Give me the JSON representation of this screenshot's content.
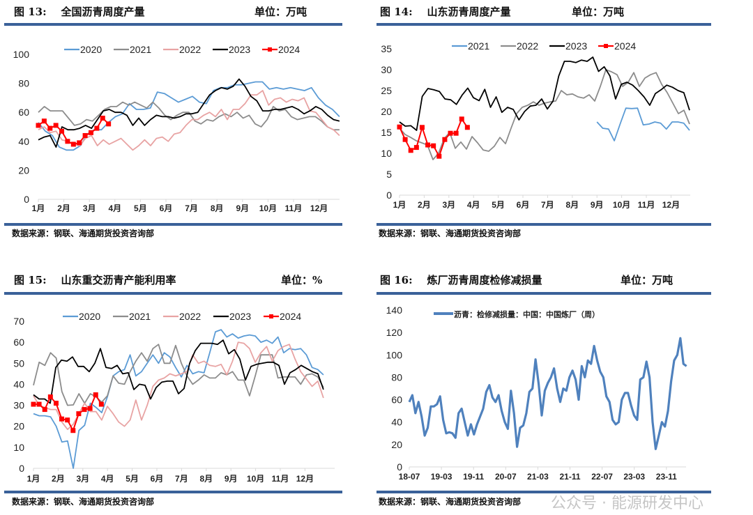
{
  "panels": [
    {
      "fig": "图 13:",
      "title": "全国沥青周度产量",
      "unit": "单位：万吨",
      "source": "数据来源：钢联、海通期货投资咨询部"
    },
    {
      "fig": "图 14:",
      "title": "山东沥青周度产量",
      "unit": "单位：万吨",
      "source": "数据来源：钢联、海通期货投资咨询部"
    },
    {
      "fig": "图 15:",
      "title": "山东重交沥青产能利用率",
      "unit": "单位：%",
      "source": "数据来源：钢联、海通期货投资咨询部"
    },
    {
      "fig": "图 16:",
      "title": "炼厂沥青周度检修减损量",
      "unit": "单位：万吨",
      "source": "数据来源：钢联、海通期货投资咨询部"
    }
  ],
  "watermark": "公众号 · 能源研发中心",
  "chart_data": [
    {
      "type": "line",
      "title": "全国沥青周度产量",
      "ylabel": "万吨",
      "ylim": [
        0,
        100
      ],
      "yticks": [
        0,
        20,
        40,
        60,
        80,
        100
      ],
      "x_unit": "month index (0 = 1月)",
      "xticks": [
        "1月",
        "2月",
        "3月",
        "4月",
        "5月",
        "6月",
        "7月",
        "8月",
        "9月",
        "10月",
        "11月",
        "12月"
      ],
      "legend": "top",
      "series": [
        {
          "name": "2020",
          "color": "#5b9bd5",
          "x_range": [
            0,
            11.8
          ],
          "values": [
            53,
            47,
            44,
            36,
            34,
            34,
            37,
            45,
            48,
            48,
            53,
            57,
            59,
            66,
            62,
            62,
            63,
            74,
            73,
            70,
            67,
            69,
            71,
            67,
            66,
            75,
            77,
            77,
            79,
            79,
            80,
            81,
            81,
            76,
            77,
            76,
            77,
            76,
            75,
            77,
            70,
            65,
            62,
            57
          ]
        },
        {
          "name": "2021",
          "color": "#8c8c8c",
          "x_range": [
            0,
            11.8
          ],
          "values": [
            60,
            64,
            61,
            61,
            61,
            56,
            51,
            52,
            55,
            54,
            58,
            62,
            64,
            64,
            67,
            65,
            67,
            65,
            63,
            67,
            63,
            58,
            55,
            58,
            60,
            60,
            54,
            52,
            55,
            54,
            57,
            59,
            57,
            60,
            56,
            58,
            52,
            50,
            55,
            64,
            61,
            62,
            57,
            55,
            56,
            57,
            57,
            54,
            50,
            48,
            48
          ]
        },
        {
          "name": "2022",
          "color": "#e8a3a3",
          "x_range": [
            0,
            11.8
          ],
          "values": [
            48,
            50,
            46,
            47,
            41,
            40,
            38,
            37,
            42,
            44,
            37,
            41,
            38,
            40,
            42,
            38,
            34,
            37,
            41,
            37,
            42,
            43,
            40,
            45,
            46,
            51,
            55,
            55,
            58,
            60,
            57,
            62,
            55,
            62,
            62,
            66,
            72,
            72,
            75,
            65,
            69,
            70,
            67,
            69,
            68,
            70,
            61,
            60,
            55,
            50,
            48,
            44
          ]
        },
        {
          "name": "2023",
          "color": "#000000",
          "x_range": [
            0,
            11.8
          ],
          "values": [
            41,
            43,
            44,
            36,
            50,
            48,
            48,
            49,
            51,
            49,
            55,
            61,
            62,
            60,
            60,
            58,
            51,
            56,
            51,
            55,
            58,
            57,
            57,
            56,
            57,
            59,
            59,
            60,
            66,
            72,
            75,
            77,
            76,
            78,
            83,
            78,
            71,
            68,
            61,
            61,
            62,
            62,
            63,
            64,
            62,
            59,
            61,
            64,
            62,
            58,
            55,
            54
          ]
        },
        {
          "name": "2024",
          "color": "#ff0000",
          "marker": "square",
          "x_range": [
            0,
            2.75
          ],
          "values": [
            51,
            54,
            49,
            51,
            47,
            40,
            38,
            39,
            44,
            46,
            49,
            56,
            52
          ]
        }
      ]
    },
    {
      "type": "line",
      "title": "山东沥青周度产量",
      "ylabel": "万吨",
      "ylim": [
        0,
        35
      ],
      "yticks": [
        0,
        5,
        10,
        15,
        20,
        25,
        30,
        35
      ],
      "x_unit": "month index (0 = 1月)",
      "xticks": [
        "1月",
        "2月",
        "3月",
        "4月",
        "5月",
        "6月",
        "7月",
        "8月",
        "9月",
        "10月",
        "11月",
        "12月"
      ],
      "legend": "top",
      "series": [
        {
          "name": "2021",
          "color": "#5b9bd5",
          "x_range": [
            8.0,
            11.75
          ],
          "values": [
            17.5,
            16,
            15.8,
            13,
            17,
            20.8,
            20.7,
            20.8,
            16.8,
            17,
            17.5,
            17.2,
            15.8,
            17.5,
            17.5,
            17.2,
            15.5
          ]
        },
        {
          "name": "2022",
          "color": "#8c8c8c",
          "x_range": [
            0,
            11.75
          ],
          "values": [
            16,
            14.5,
            13.8,
            13,
            12.5,
            12,
            8.5,
            10,
            13.5,
            15,
            11.2,
            12.7,
            11,
            14,
            12.5,
            10.8,
            10.5,
            11.7,
            13.8,
            12.3,
            16,
            19.5,
            21,
            21.5,
            22.3,
            21.5,
            22,
            22.3,
            22.5,
            25,
            24,
            24.2,
            23.5,
            23.2,
            24,
            22.5,
            26,
            30,
            29.5,
            28.8,
            26,
            27,
            29.3,
            26,
            28,
            28.8,
            29.3,
            26.5,
            24.5,
            22,
            19.5,
            20.3,
            17
          ]
        },
        {
          "name": "2023",
          "color": "#000000",
          "x_range": [
            0,
            11.75
          ],
          "values": [
            17.5,
            16.5,
            16.6,
            15.5,
            23.6,
            25.5,
            25.2,
            24.8,
            23,
            22.8,
            21.7,
            23.9,
            25.6,
            23.3,
            22.6,
            25.3,
            21,
            23.5,
            19.8,
            21,
            20.5,
            18,
            20,
            21.3,
            21.5,
            23,
            20.6,
            22.5,
            28.5,
            32,
            32,
            31.7,
            32.3,
            32,
            33,
            29.6,
            30.7,
            28.5,
            23,
            26.5,
            27,
            26.3,
            25,
            23.5,
            21.5,
            24.3,
            25.2,
            26.3,
            25.8,
            25,
            24.5,
            20.3
          ]
        },
        {
          "name": "2024",
          "color": "#ff0000",
          "marker": "square",
          "x_range": [
            0,
            2.75
          ],
          "values": [
            16.3,
            13.3,
            10.7,
            11.4,
            16.2,
            12,
            11.8,
            9.3,
            13.3,
            14.8,
            14.8,
            18.2,
            16.2
          ]
        }
      ]
    },
    {
      "type": "line",
      "title": "山东重交沥青产能利用率",
      "ylabel": "%",
      "ylim": [
        0,
        70
      ],
      "yticks": [
        0,
        10,
        20,
        30,
        40,
        50,
        60,
        70
      ],
      "x_unit": "month index (0 = 1月)",
      "xticks": [
        "1月",
        "2月",
        "3月",
        "4月",
        "5月",
        "6月",
        "7月",
        "8月",
        "9月",
        "10月",
        "11月",
        "12月"
      ],
      "legend": "top",
      "series": [
        {
          "name": "2020",
          "color": "#5b9bd5",
          "x_range": [
            0,
            11.75
          ],
          "values": [
            26,
            25,
            25,
            24.5,
            20,
            12.5,
            13,
            0,
            18,
            20.5,
            31,
            29,
            26.5,
            34,
            44,
            46,
            47,
            54,
            44,
            46,
            50,
            54,
            50,
            55,
            53,
            48,
            43.5,
            49,
            45,
            46,
            45.5,
            55,
            65,
            66,
            62.5,
            64,
            62,
            63,
            63.5,
            63,
            60,
            61,
            59.5,
            62.5,
            55,
            57,
            56.5,
            57,
            54,
            48,
            47,
            44.5
          ]
        },
        {
          "name": "2021",
          "color": "#8c8c8c",
          "x_range": [
            0,
            11.75
          ],
          "values": [
            39.5,
            50.5,
            49,
            55,
            52.5,
            36.5,
            30,
            30.2,
            35.5,
            31,
            35.5,
            34,
            31.5,
            34.5,
            44,
            40.5,
            40,
            46,
            51,
            55,
            51,
            57,
            59,
            50,
            50,
            58.5,
            50,
            44,
            40,
            42,
            44.5,
            43,
            43,
            45.5,
            44.5,
            46,
            42,
            42,
            34.5,
            44,
            54,
            54,
            54,
            43,
            43.5,
            43.5,
            43.5,
            40,
            44.5,
            45,
            43.5,
            38.5
          ]
        },
        {
          "name": "2022",
          "color": "#e8a3a3",
          "x_range": [
            0,
            11.75
          ],
          "values": [
            34.5,
            30,
            29,
            28,
            28,
            22,
            18.5,
            21,
            26,
            31,
            27,
            27,
            23,
            29.5,
            26,
            22,
            20,
            23,
            32.5,
            23,
            30,
            39,
            42,
            43,
            45,
            44,
            45,
            46,
            54,
            50,
            51,
            49,
            48.5,
            49.5,
            44.5,
            51,
            60,
            59.5,
            57,
            50.5,
            55,
            58,
            51,
            56,
            58,
            59,
            52,
            46,
            42.5,
            39,
            41.5,
            33.5
          ]
        },
        {
          "name": "2023",
          "color": "#000000",
          "x_range": [
            0,
            11.75
          ],
          "values": [
            35,
            33,
            33,
            31,
            48,
            51.5,
            51,
            53,
            48.5,
            48.5,
            46,
            50,
            57,
            48,
            47.5,
            49,
            45,
            45.5,
            37.5,
            40,
            39.5,
            33,
            38.5,
            41,
            41.5,
            41.5,
            35.5,
            38,
            50,
            56,
            59.5,
            59.5,
            59.5,
            59,
            61,
            54.5,
            56.5,
            52,
            42,
            48.5,
            49.5,
            50,
            50.5,
            50.5,
            49,
            40,
            45.5,
            47,
            49,
            47.5,
            46,
            45,
            37.5
          ]
        },
        {
          "name": "2024",
          "color": "#ff0000",
          "marker": "square",
          "x_range": [
            0,
            2.75
          ],
          "values": [
            30.5,
            30.5,
            28,
            34,
            31,
            23.5,
            23,
            18,
            26,
            28,
            28.5,
            35,
            30.5
          ]
        }
      ]
    },
    {
      "type": "line",
      "title": "炼厂沥青周度检修减损量",
      "ylabel": "万吨",
      "ylim": [
        0,
        140
      ],
      "yticks": [
        0,
        20,
        40,
        60,
        80,
        100,
        120,
        140
      ],
      "x_unit": "months since 2018-07",
      "xticks": [
        "18-07",
        "19-03",
        "19-11",
        "20-07",
        "21-03",
        "21-11",
        "22-07",
        "23-03",
        "23-11"
      ],
      "legend": "top-left",
      "series": [
        {
          "name": "沥青：检修减损量：中国：中国炼厂（周）",
          "color": "#4f81bd",
          "x_range": [
            0,
            69
          ],
          "values": [
            58,
            64,
            48,
            58,
            45,
            28,
            35,
            54,
            54,
            56,
            63,
            42,
            30,
            31,
            30,
            26,
            48,
            52,
            40,
            28,
            38,
            29,
            38,
            45,
            52,
            67,
            73,
            62,
            58,
            64,
            50,
            40,
            34,
            68,
            48,
            18,
            35,
            37,
            48,
            67,
            70,
            96,
            74,
            46,
            68,
            75,
            80,
            88,
            70,
            58,
            70,
            68,
            80,
            86,
            78,
            60,
            90,
            80,
            95,
            92,
            108,
            95,
            85,
            80,
            63,
            58,
            42,
            38,
            40,
            60,
            66,
            66,
            55,
            46,
            42,
            78,
            80,
            94,
            80,
            40,
            16,
            28,
            40,
            36,
            50,
            76,
            95,
            100,
            115,
            92,
            90
          ]
        }
      ]
    }
  ]
}
